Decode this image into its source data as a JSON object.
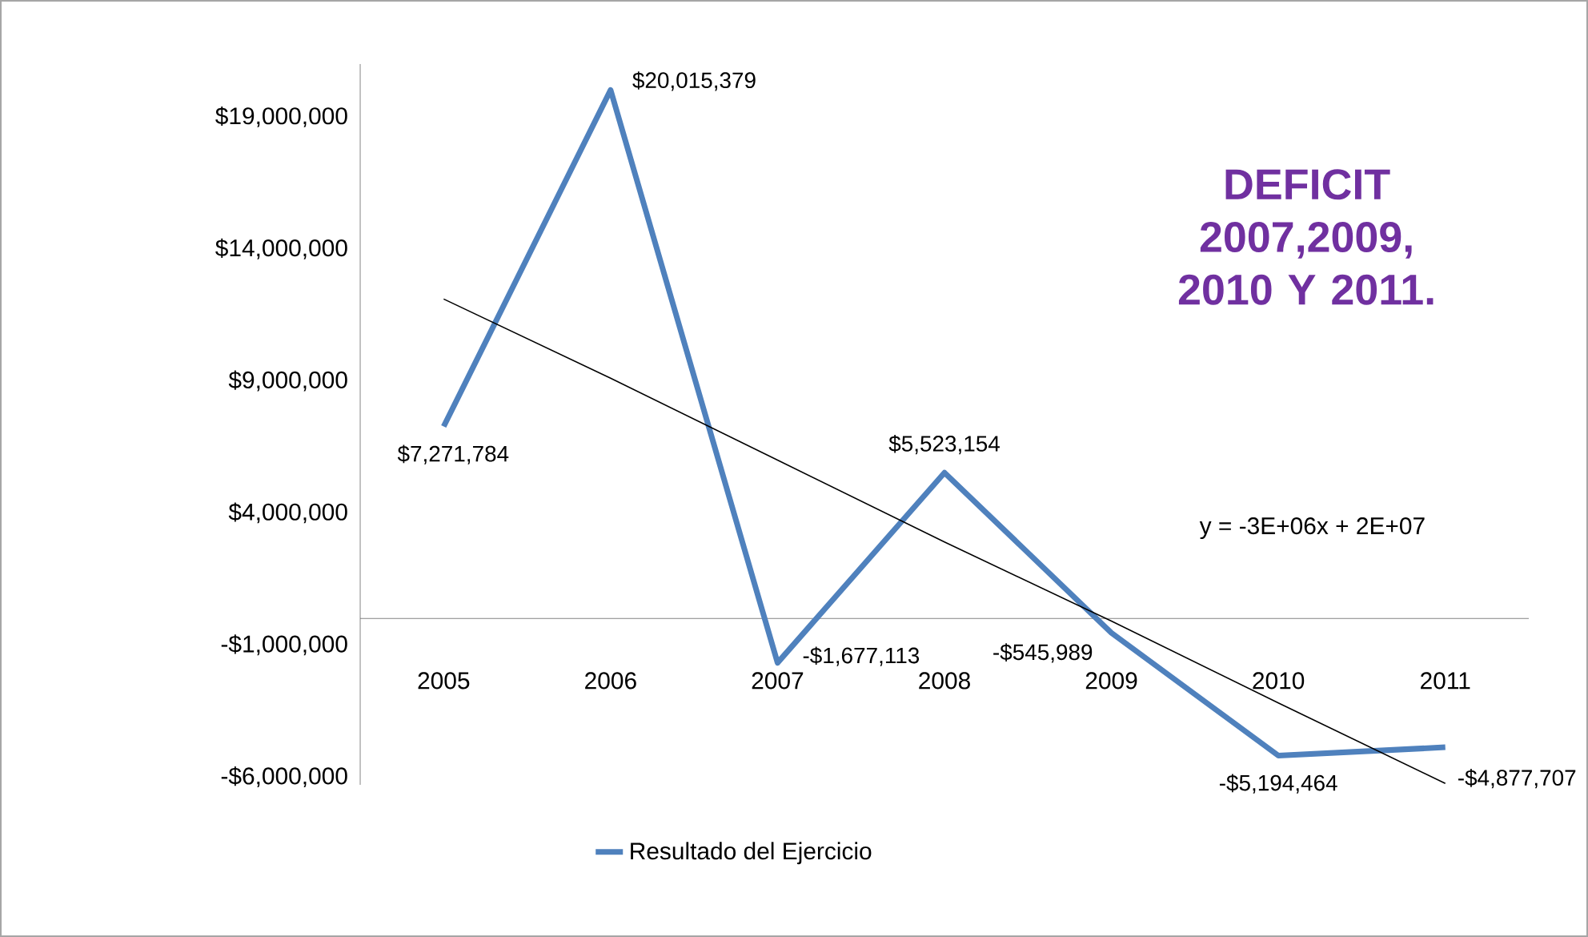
{
  "chart_data": {
    "type": "line",
    "categories": [
      "2005",
      "2006",
      "2007",
      "2008",
      "2009",
      "2010",
      "2011"
    ],
    "series": [
      {
        "name": "Resultado del Ejercicio",
        "color": "#4f81bd",
        "values": [
          7271784,
          20015379,
          -1677113,
          5523154,
          -545989,
          -5194464,
          -4877707
        ],
        "value_labels": [
          "$7,271,784",
          "$20,015,379",
          "-$1,677,113",
          "$5,523,154",
          "-$545,989",
          "-$5,194,464",
          "-$4,877,707"
        ]
      },
      {
        "type": "line",
        "color": "#000000",
        "values": [
          12100000,
          9100000,
          6000000,
          2900000,
          -100000,
          -3200000,
          -6250000
        ]
      }
    ],
    "ylim": [
      -6300000,
      21000000
    ],
    "yticks": [
      {
        "value": -6000000,
        "label": "-$6,000,000"
      },
      {
        "value": -1000000,
        "label": "-$1,000,000"
      },
      {
        "value": 4000000,
        "label": "$4,000,000"
      },
      {
        "value": 9000000,
        "label": "$9,000,000"
      },
      {
        "value": 14000000,
        "label": "$14,000,000"
      },
      {
        "value": 19000000,
        "label": "$19,000,000"
      }
    ],
    "annotations": [
      "DEFICIT 2007,2009, 2010 Y 2011.",
      "y = -3E+06x + 2E+07"
    ],
    "legend": "bottom",
    "grid": false,
    "marker": "none"
  }
}
